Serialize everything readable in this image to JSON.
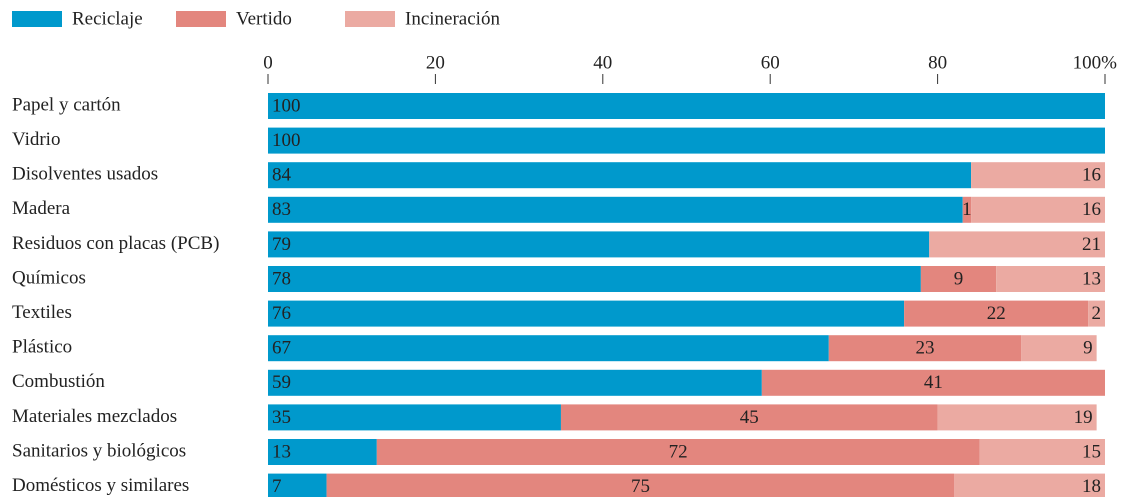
{
  "chart_data": {
    "type": "stacked-bar-horizontal",
    "categories": [
      "Papel y cartón",
      "Vidrio",
      "Disolventes usados",
      "Madera",
      "Residuos con placas (PCB)",
      "Químicos",
      "Textiles",
      "Plástico",
      "Combustión",
      "Materiales mezclados",
      "Sanitarios y biológicos",
      "Domésticos y similares"
    ],
    "series": [
      {
        "name": "Reciclaje",
        "color": "#0099cc",
        "values": [
          100,
          100,
          84,
          83,
          79,
          78,
          76,
          67,
          59,
          35,
          13,
          7
        ]
      },
      {
        "name": "Vertido",
        "color": "#e3867e",
        "values": [
          null,
          null,
          null,
          1,
          null,
          9,
          22,
          23,
          41,
          45,
          72,
          75
        ]
      },
      {
        "name": "Incineración",
        "color": "#ebaaa2",
        "values": [
          null,
          null,
          16,
          16,
          21,
          13,
          2,
          9,
          null,
          19,
          15,
          18
        ]
      }
    ],
    "xlim": [
      0,
      100
    ],
    "xticks": [
      0,
      20,
      40,
      60,
      80,
      {
        "value": 100,
        "label": "100%"
      }
    ]
  }
}
